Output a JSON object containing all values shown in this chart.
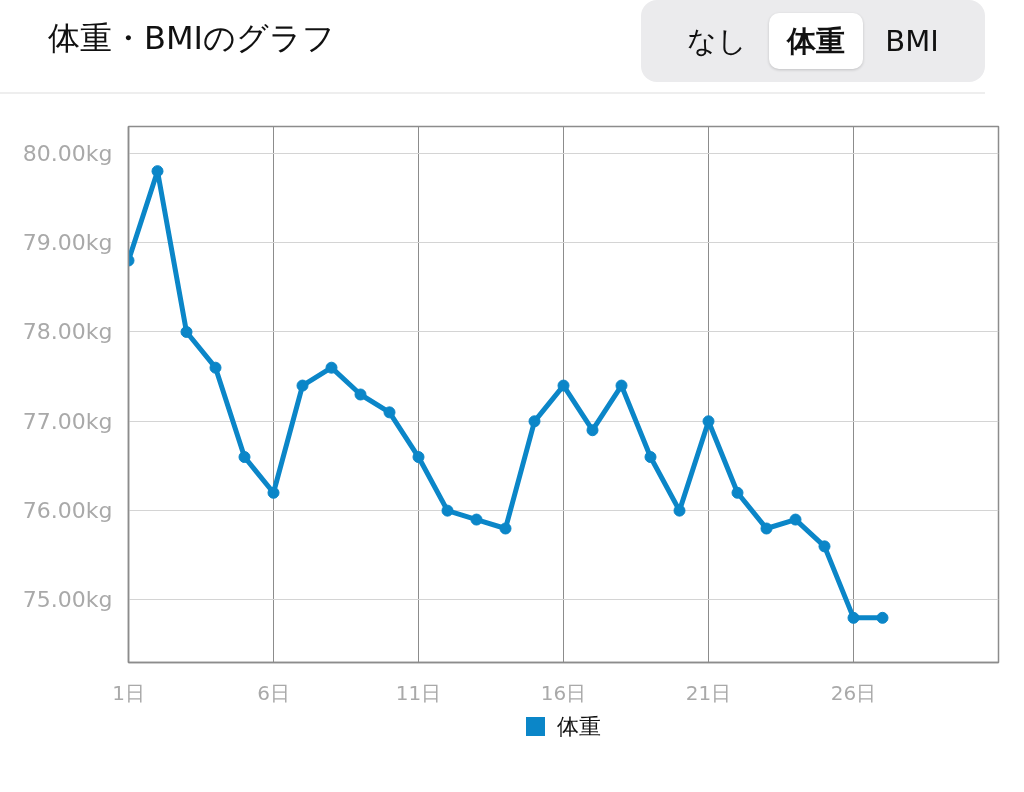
{
  "chart_data": {
    "type": "line",
    "title": "体重・BMIのグラフ",
    "annotations": [
      "なし",
      "体重",
      "BMI"
    ],
    "x": [
      1,
      2,
      3,
      4,
      5,
      6,
      7,
      8,
      9,
      10,
      11,
      12,
      13,
      14,
      15,
      16,
      17,
      18,
      19,
      20,
      21,
      22,
      23,
      24,
      25,
      26,
      27
    ],
    "series": [
      {
        "name": "体重",
        "color": "#0b86c8",
        "values": [
          78.8,
          79.8,
          78.0,
          77.6,
          76.6,
          76.2,
          77.4,
          77.6,
          77.3,
          77.1,
          76.6,
          76.0,
          75.9,
          75.8,
          77.0,
          77.4,
          76.9,
          77.4,
          76.6,
          76.0,
          77.0,
          76.2,
          75.8,
          75.9,
          75.6,
          74.8,
          74.8
        ]
      }
    ],
    "xlim": [
      1,
      31
    ],
    "xticks": [
      {
        "value": 1,
        "label": "1日"
      },
      {
        "value": 6,
        "label": "6日"
      },
      {
        "value": 11,
        "label": "11日"
      },
      {
        "value": 16,
        "label": "16日"
      },
      {
        "value": 21,
        "label": "21日"
      },
      {
        "value": 26,
        "label": "26日"
      }
    ],
    "ylim": [
      74.3,
      80.3
    ],
    "yticks": [
      {
        "value": 75,
        "label": "75.00kg"
      },
      {
        "value": 76,
        "label": "76.00kg"
      },
      {
        "value": 77,
        "label": "77.00kg"
      },
      {
        "value": 78,
        "label": "78.00kg"
      },
      {
        "value": 79,
        "label": "79.00kg"
      },
      {
        "value": 80,
        "label": "80.00kg"
      }
    ],
    "grid": true,
    "legend": "bottom",
    "marker": "circle",
    "line_style": "solid"
  }
}
